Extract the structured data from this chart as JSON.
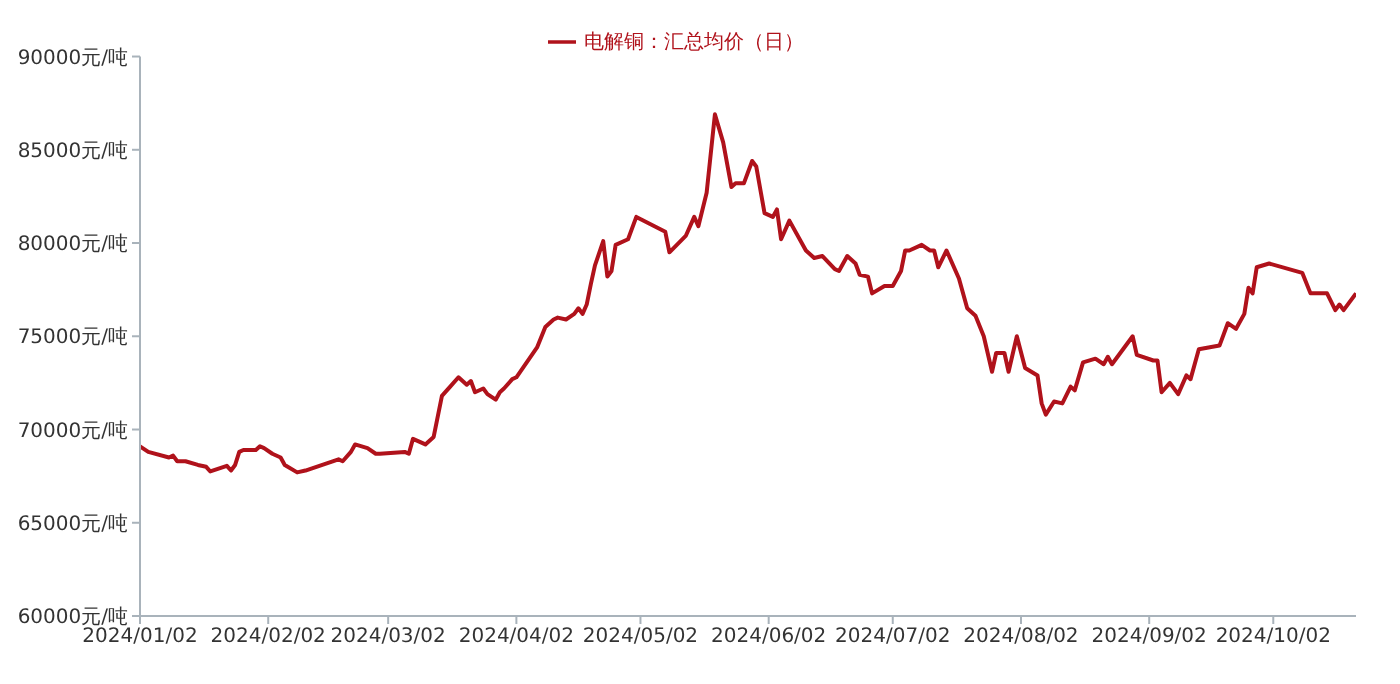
{
  "chart_data": {
    "type": "line",
    "legend": "top",
    "grid": false,
    "marker": "none",
    "line_style": "solid",
    "x": [
      "2024-01-02",
      "2024-01-04",
      "2024-01-09",
      "2024-01-10",
      "2024-01-11",
      "2024-01-13",
      "2024-01-16",
      "2024-01-18",
      "2024-01-19",
      "2024-01-23",
      "2024-01-24",
      "2024-01-25",
      "2024-01-26",
      "2024-01-27",
      "2024-01-30",
      "2024-01-31",
      "2024-02-01",
      "2024-02-03",
      "2024-02-05",
      "2024-02-06",
      "2024-02-09",
      "2024-02-11",
      "2024-02-19",
      "2024-02-20",
      "2024-02-22",
      "2024-02-23",
      "2024-02-26",
      "2024-02-28",
      "2024-02-29",
      "2024-03-06",
      "2024-03-07",
      "2024-03-08",
      "2024-03-11",
      "2024-03-13",
      "2024-03-15",
      "2024-03-17",
      "2024-03-19",
      "2024-03-21",
      "2024-03-22",
      "2024-03-23",
      "2024-03-25",
      "2024-03-26",
      "2024-03-28",
      "2024-03-29",
      "2024-03-30",
      "2024-04-01",
      "2024-04-02",
      "2024-04-07",
      "2024-04-09",
      "2024-04-11",
      "2024-04-12",
      "2024-04-14",
      "2024-04-16",
      "2024-04-17",
      "2024-04-18",
      "2024-04-19",
      "2024-04-20",
      "2024-04-21",
      "2024-04-23",
      "2024-04-24",
      "2024-04-25",
      "2024-04-26",
      "2024-04-29",
      "2024-05-01",
      "2024-05-08",
      "2024-05-09",
      "2024-05-13",
      "2024-05-15",
      "2024-05-16",
      "2024-05-18",
      "2024-05-20",
      "2024-05-22",
      "2024-05-24",
      "2024-05-25",
      "2024-05-27",
      "2024-05-29",
      "2024-05-30",
      "2024-06-01",
      "2024-06-03",
      "2024-06-04",
      "2024-06-05",
      "2024-06-07",
      "2024-06-11",
      "2024-06-13",
      "2024-06-15",
      "2024-06-18",
      "2024-06-19",
      "2024-06-21",
      "2024-06-23",
      "2024-06-24",
      "2024-06-26",
      "2024-06-27",
      "2024-06-30",
      "2024-07-02",
      "2024-07-04",
      "2024-07-05",
      "2024-07-06",
      "2024-07-09",
      "2024-07-11",
      "2024-07-12",
      "2024-07-13",
      "2024-07-15",
      "2024-07-18",
      "2024-07-20",
      "2024-07-22",
      "2024-07-24",
      "2024-07-26",
      "2024-07-27",
      "2024-07-29",
      "2024-07-30",
      "2024-08-01",
      "2024-08-03",
      "2024-08-06",
      "2024-08-07",
      "2024-08-08",
      "2024-08-10",
      "2024-08-12",
      "2024-08-14",
      "2024-08-15",
      "2024-08-17",
      "2024-08-20",
      "2024-08-22",
      "2024-08-23",
      "2024-08-24",
      "2024-08-29",
      "2024-08-30",
      "2024-09-03",
      "2024-09-04",
      "2024-09-05",
      "2024-09-07",
      "2024-09-09",
      "2024-09-11",
      "2024-09-12",
      "2024-09-14",
      "2024-09-19",
      "2024-09-21",
      "2024-09-23",
      "2024-09-25",
      "2024-09-26",
      "2024-09-27",
      "2024-09-28",
      "2024-10-01",
      "2024-10-09",
      "2024-10-11",
      "2024-10-15",
      "2024-10-17",
      "2024-10-18",
      "2024-10-19",
      "2024-10-22"
    ],
    "series": [
      {
        "name": "电解铜：汇总均价（日）",
        "color": "#b0121b",
        "values": [
          69100,
          68800,
          68500,
          68600,
          68300,
          68300,
          68100,
          68000,
          67750,
          68050,
          67800,
          68100,
          68800,
          68900,
          68900,
          69100,
          69000,
          68700,
          68500,
          68100,
          67700,
          67800,
          68400,
          68300,
          68800,
          69200,
          69000,
          68700,
          68700,
          68800,
          68700,
          69500,
          69200,
          69600,
          71800,
          72300,
          72800,
          72400,
          72600,
          72000,
          72200,
          71900,
          71600,
          72000,
          72200,
          72700,
          72800,
          74400,
          75500,
          75900,
          76000,
          75900,
          76200,
          76500,
          76200,
          76700,
          77800,
          78800,
          80100,
          78200,
          78500,
          79900,
          80200,
          81400,
          80600,
          79500,
          80400,
          81400,
          80900,
          82700,
          86900,
          85400,
          83000,
          83200,
          83200,
          84400,
          84100,
          81600,
          81400,
          81800,
          80200,
          81200,
          79600,
          79200,
          79300,
          78600,
          78500,
          79300,
          78900,
          78300,
          78200,
          77300,
          77700,
          77700,
          78500,
          79600,
          79600,
          79900,
          79600,
          79600,
          78700,
          79600,
          78100,
          76500,
          76100,
          75000,
          73100,
          74100,
          74100,
          73100,
          75000,
          73300,
          72900,
          71400,
          70800,
          71500,
          71400,
          72300,
          72100,
          73600,
          73800,
          73500,
          73900,
          73500,
          75000,
          74000,
          73700,
          73700,
          72000,
          72500,
          71900,
          72900,
          72700,
          74300,
          74500,
          75700,
          75400,
          76200,
          77600,
          77300,
          78700,
          78900,
          78400,
          77300,
          77300,
          76400,
          76700,
          76400,
          77300
        ]
      }
    ],
    "xlim": [
      "2024-01-02",
      "2024-10-22"
    ],
    "xticks": [
      {
        "value": "2024-01-02",
        "label": "2024/01/02"
      },
      {
        "value": "2024-02-02",
        "label": "2024/02/02"
      },
      {
        "value": "2024-03-02",
        "label": "2024/03/02"
      },
      {
        "value": "2024-04-02",
        "label": "2024/04/02"
      },
      {
        "value": "2024-05-02",
        "label": "2024/05/02"
      },
      {
        "value": "2024-06-02",
        "label": "2024/06/02"
      },
      {
        "value": "2024-07-02",
        "label": "2024/07/02"
      },
      {
        "value": "2024-08-02",
        "label": "2024/08/02"
      },
      {
        "value": "2024-09-02",
        "label": "2024/09/02"
      },
      {
        "value": "2024-10-02",
        "label": "2024/10/02"
      }
    ],
    "ylim": [
      60000,
      90000
    ],
    "yticks": [
      {
        "value": 60000,
        "label": "60000元/吨"
      },
      {
        "value": 65000,
        "label": "65000元/吨"
      },
      {
        "value": 70000,
        "label": "70000元/吨"
      },
      {
        "value": 75000,
        "label": "75000元/吨"
      },
      {
        "value": 80000,
        "label": "80000元/吨"
      },
      {
        "value": 85000,
        "label": "85000元/吨"
      },
      {
        "value": 90000,
        "label": "90000元/吨"
      }
    ]
  }
}
